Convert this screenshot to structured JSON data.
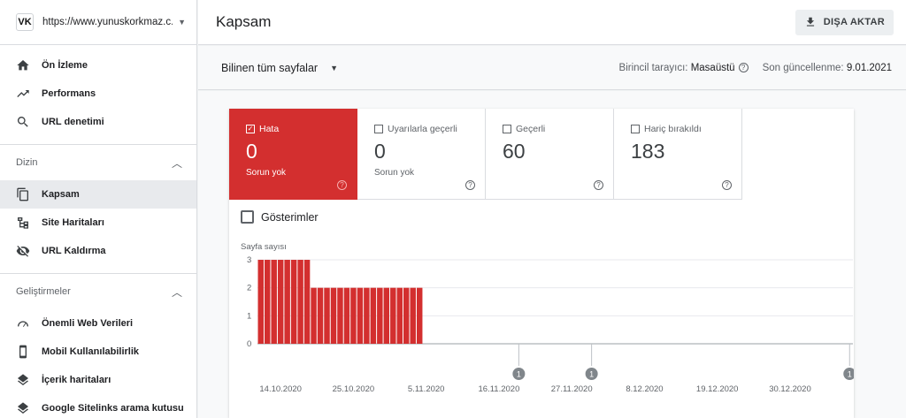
{
  "property": {
    "logo": "VK",
    "url": "https://www.yunuskorkmaz.c..."
  },
  "nav": {
    "top": [
      {
        "label": "Ön İzleme",
        "icon": "home-icon"
      },
      {
        "label": "Performans",
        "icon": "trending-up-icon"
      },
      {
        "label": "URL denetimi",
        "icon": "search-icon"
      }
    ],
    "dizin": {
      "title": "Dizin",
      "items": [
        {
          "label": "Kapsam",
          "icon": "copy-pages-icon",
          "active": true
        },
        {
          "label": "Site Haritaları",
          "icon": "sitemap-icon"
        },
        {
          "label": "URL Kaldırma",
          "icon": "eye-off-icon"
        }
      ]
    },
    "gelistirmeler": {
      "title": "Geliştirmeler",
      "items": [
        {
          "label": "Önemli Web Verileri",
          "icon": "gauge-icon"
        },
        {
          "label": "Mobil Kullanılabilirlik",
          "icon": "phone-icon"
        },
        {
          "label": "İçerik haritaları",
          "icon": "layers-icon"
        },
        {
          "label": "Google Sitelinks arama kutusu",
          "icon": "layers-icon"
        }
      ]
    }
  },
  "header": {
    "title": "Kapsam",
    "export_label": "DIŞA AKTAR"
  },
  "toolbar": {
    "filter": "Bilinen tüm sayfalar",
    "crawler_label": "Birincil tarayıcı:",
    "crawler_value": "Masaüstü",
    "updated_label": "Son güncellenme:",
    "updated_value": "9.01.2021"
  },
  "tiles": [
    {
      "label": "Hata",
      "value": "0",
      "sub": "Sorun yok",
      "checked": true,
      "color": "#d32f2f"
    },
    {
      "label": "Uyarılarla geçerli",
      "value": "0",
      "sub": "Sorun yok",
      "checked": false
    },
    {
      "label": "Geçerli",
      "value": "60",
      "sub": "",
      "checked": false
    },
    {
      "label": "Hariç bırakıldı",
      "value": "183",
      "sub": "",
      "checked": false
    }
  ],
  "impressions_label": "Gösterimler",
  "chart_data": {
    "type": "bar",
    "ylabel": "Sayfa sayısı",
    "ylim": [
      0,
      3
    ],
    "yticks": [
      0,
      1,
      2,
      3
    ],
    "bar_color": "#d32f2f",
    "x": [
      "2020-10-11",
      "2020-10-12",
      "2020-10-13",
      "2020-10-14",
      "2020-10-15",
      "2020-10-16",
      "2020-10-17",
      "2020-10-18",
      "2020-10-19",
      "2020-10-20",
      "2020-10-21",
      "2020-10-22",
      "2020-10-23",
      "2020-10-24",
      "2020-10-25",
      "2020-10-26",
      "2020-10-27",
      "2020-10-28",
      "2020-10-29",
      "2020-10-30",
      "2020-10-31",
      "2020-11-01",
      "2020-11-02",
      "2020-11-03",
      "2020-11-04"
    ],
    "values": [
      3,
      3,
      3,
      3,
      3,
      3,
      3,
      3,
      2,
      2,
      2,
      2,
      2,
      2,
      2,
      2,
      2,
      2,
      2,
      2,
      2,
      2,
      2,
      2,
      2
    ],
    "xticks": [
      "14.10.2020",
      "25.10.2020",
      "5.11.2020",
      "16.11.2020",
      "27.11.2020",
      "8.12.2020",
      "19.12.2020",
      "30.12.2020"
    ],
    "annotations": [
      {
        "date": "2020-11-19",
        "label": "1"
      },
      {
        "date": "2020-11-30",
        "label": "1"
      },
      {
        "date": "2021-01-08",
        "label": "1"
      }
    ],
    "x_range": [
      "2020-10-11",
      "2021-01-09"
    ],
    "grid": true
  }
}
